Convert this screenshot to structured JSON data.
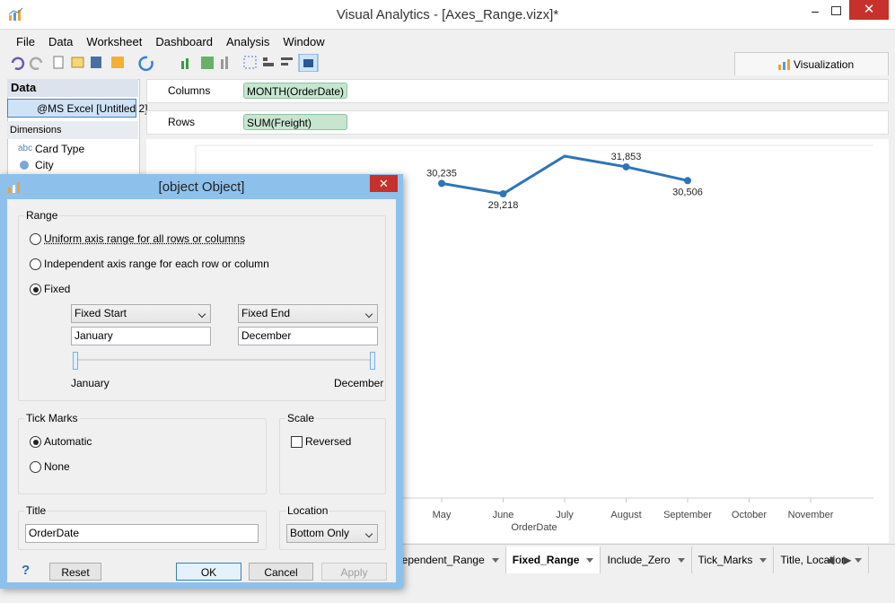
{
  "window": {
    "title": "Visual Analytics - [Axes_Range.vizx]*"
  },
  "menu": [
    "File",
    "Data",
    "Worksheet",
    "Dashboard",
    "Analysis",
    "Window"
  ],
  "side_tab": "Visualization",
  "data_pane": {
    "header": "Data",
    "source": "@MS Excel [Untitled 2]",
    "dimensions": "Dimensions",
    "field_icon": "abc",
    "fields": [
      "Card Type",
      "City"
    ]
  },
  "shelves": {
    "columns": {
      "label": "Columns",
      "pill": "MONTH(OrderDate)"
    },
    "rows": {
      "label": "Rows",
      "pill": "SUM(Freight)"
    }
  },
  "chart_data": {
    "type": "line",
    "categories": [
      "May",
      "June",
      "July",
      "August",
      "September",
      "October",
      "November"
    ],
    "values": [
      30235,
      29218,
      32900,
      31853,
      30506,
      null,
      null
    ],
    "value_labels": [
      "30,235",
      "29,218",
      null,
      "31,853",
      "30,506",
      null,
      null
    ],
    "x_title": "OrderDate",
    "color": "#2e75b6"
  },
  "sheet_tabs": {
    "tabs": [
      "Independent_Range",
      "Fixed_Range",
      "Include_Zero",
      "Tick_Marks",
      "Title, Location"
    ],
    "active": 1
  },
  "dialog": {
    "title": {
      "label": "Title",
      "value": "OrderDate"
    },
    "range": {
      "label": "Range",
      "options": [
        {
          "label": "Uniform axis range for all rows or columns",
          "checked": false
        },
        {
          "label": "Independent axis range for each row or column",
          "checked": false
        },
        {
          "label": "Fixed",
          "checked": true
        }
      ],
      "start_mode": "Fixed Start",
      "end_mode": "Fixed End",
      "start": "January",
      "end": "December",
      "slider_start": "January",
      "slider_end": "December"
    },
    "tick_marks": {
      "label": "Tick Marks",
      "options": [
        {
          "label": "Automatic",
          "checked": true
        },
        {
          "label": "None",
          "checked": false
        }
      ]
    },
    "scale": {
      "label": "Scale",
      "reversed": {
        "label": "Reversed",
        "checked": false
      }
    },
    "location": {
      "label": "Location",
      "value": "Bottom Only"
    },
    "buttons": {
      "help": "?",
      "reset": "Reset",
      "ok": "OK",
      "cancel": "Cancel",
      "apply": "Apply"
    }
  }
}
